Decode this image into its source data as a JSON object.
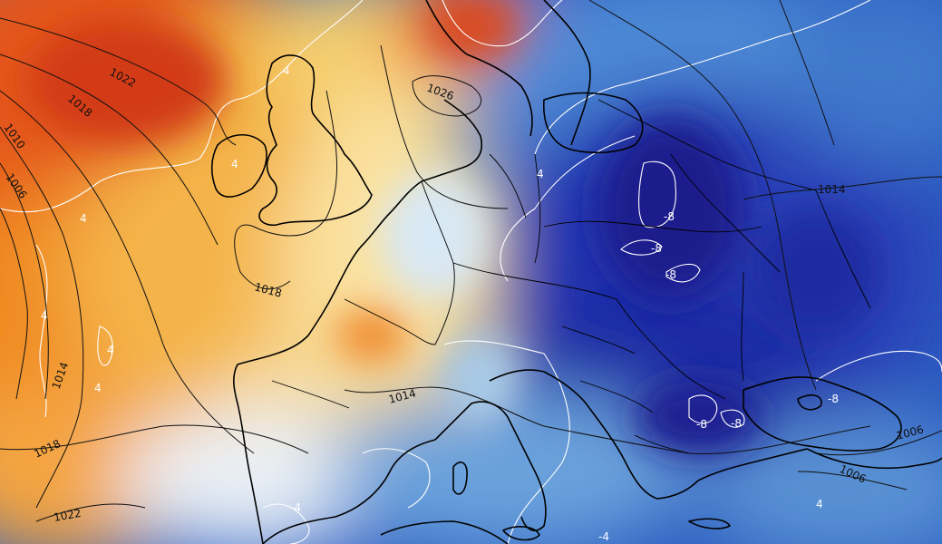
{
  "pressure_labels": [
    "1022",
    "1018",
    "1010",
    "1006",
    "1026",
    "1018",
    "1014",
    "1014",
    "1018",
    "1022",
    "1014",
    "1006",
    "1006"
  ],
  "temperature_labels": [
    "4",
    "4",
    "4",
    "4",
    "4",
    "4",
    "4",
    "-8",
    "-8",
    "-8",
    "-8",
    "-8",
    "-8",
    "-4",
    "-4",
    "4"
  ],
  "colors": {
    "warm_deep": "#d8401a",
    "warm": "#f08a24",
    "mild": "#f4c04a",
    "pale": "#fbf0c0",
    "cool": "#9cc4e4",
    "cold": "#2a6cc8",
    "very_cold": "#1e2fa8",
    "extreme_cold": "#1a1a8c",
    "isobar": "#111111",
    "isotherm": "#ffffff",
    "coastline": "#000000"
  }
}
